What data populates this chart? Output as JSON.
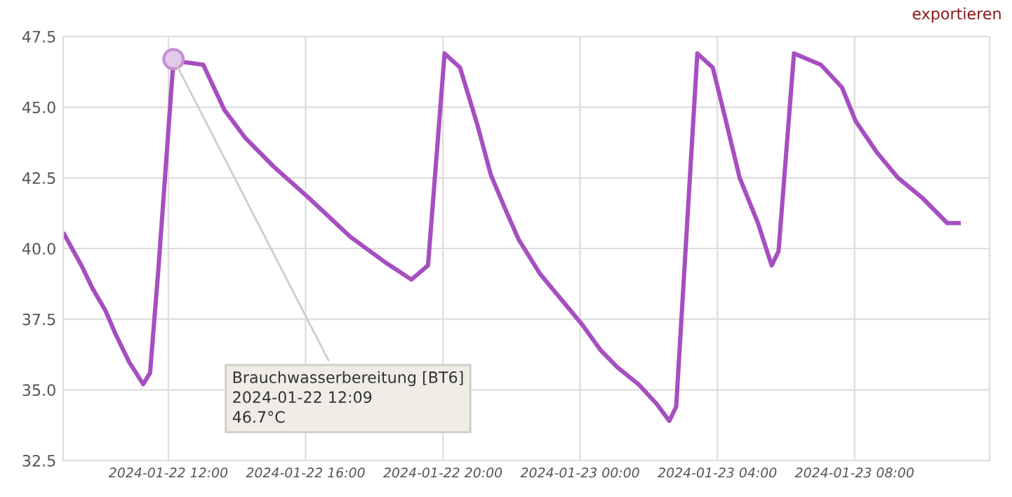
{
  "chart_data": {
    "type": "line",
    "x": [
      "2024-01-22T08:58",
      "2024-01-22T09:28",
      "2024-01-22T09:47",
      "2024-01-22T10:10",
      "2024-01-22T10:27",
      "2024-01-22T10:51",
      "2024-01-22T11:16",
      "2024-01-22T11:28",
      "2024-01-22T11:43",
      "2024-01-22T12:09",
      "2024-01-22T12:25",
      "2024-01-22T13:01",
      "2024-01-22T13:38",
      "2024-01-22T14:15",
      "2024-01-22T15:04",
      "2024-01-22T16:05",
      "2024-01-22T17:19",
      "2024-01-22T18:20",
      "2024-01-22T19:05",
      "2024-01-22T19:34",
      "2024-01-22T20:03",
      "2024-01-22T20:30",
      "2024-01-22T21:00",
      "2024-01-22T21:24",
      "2024-01-22T21:49",
      "2024-01-22T22:13",
      "2024-01-22T22:50",
      "2024-01-22T23:27",
      "2024-01-23T00:04",
      "2024-01-23T00:36",
      "2024-01-23T01:05",
      "2024-01-23T01:42",
      "2024-01-23T02:14",
      "2024-01-23T02:36",
      "2024-01-23T02:48",
      "2024-01-23T03:25",
      "2024-01-23T03:52",
      "2024-01-23T04:14",
      "2024-01-23T04:39",
      "2024-01-23T05:11",
      "2024-01-23T05:35",
      "2024-01-23T05:47",
      "2024-01-23T06:14",
      "2024-01-23T07:01",
      "2024-01-23T07:38",
      "2024-01-23T08:02",
      "2024-01-23T08:39",
      "2024-01-23T09:16",
      "2024-01-23T09:58",
      "2024-01-23T10:42",
      "2024-01-23T11:02"
    ],
    "series": [
      {
        "color": "#a64fc0",
        "values": [
          40.5,
          39.4,
          38.6,
          37.8,
          37.0,
          36.0,
          35.2,
          35.6,
          39.4,
          46.7,
          46.6,
          46.5,
          44.9,
          43.9,
          42.9,
          41.8,
          40.4,
          39.5,
          38.9,
          39.4,
          46.9,
          46.4,
          44.4,
          42.6,
          41.4,
          40.3,
          39.1,
          38.2,
          37.3,
          36.4,
          35.8,
          35.2,
          34.5,
          33.9,
          34.4,
          46.9,
          46.4,
          44.6,
          42.5,
          40.9,
          39.4,
          39.9,
          46.9,
          46.5,
          45.7,
          44.5,
          43.4,
          42.5,
          41.8,
          40.9,
          40.9
        ]
      }
    ],
    "xlim": [
      "2024-01-22T08:56",
      "2024-01-23T11:56"
    ],
    "xticks": [
      {
        "value": "2024-01-22T12:00",
        "label": "2024-01-22 12:00"
      },
      {
        "value": "2024-01-22T16:00",
        "label": "2024-01-22 16:00"
      },
      {
        "value": "2024-01-22T20:00",
        "label": "2024-01-22 20:00"
      },
      {
        "value": "2024-01-23T00:00",
        "label": "2024-01-23 00:00"
      },
      {
        "value": "2024-01-23T04:00",
        "label": "2024-01-23 04:00"
      },
      {
        "value": "2024-01-23T08:00",
        "label": "2024-01-23 08:00"
      }
    ],
    "ylim": [
      32.5,
      47.5
    ],
    "yticks": [
      {
        "value": 32.5,
        "label": "32.5"
      },
      {
        "value": 35,
        "label": "35.0"
      },
      {
        "value": 37.5,
        "label": "37.5"
      },
      {
        "value": 40,
        "label": "40.0"
      },
      {
        "value": 42.5,
        "label": "42.5"
      },
      {
        "value": 45,
        "label": "45.0"
      },
      {
        "value": 47.5,
        "label": "47.5"
      }
    ],
    "grid": true,
    "marker": "none",
    "line_style": "solid",
    "annotations": [
      {
        "text": "Brauchwasserbereitung [BT6]\n2024-01-22 12:09\n46.7°C",
        "x": "2024-01-22T12:09",
        "y": 46.7
      },
      "exportieren"
    ]
  }
}
